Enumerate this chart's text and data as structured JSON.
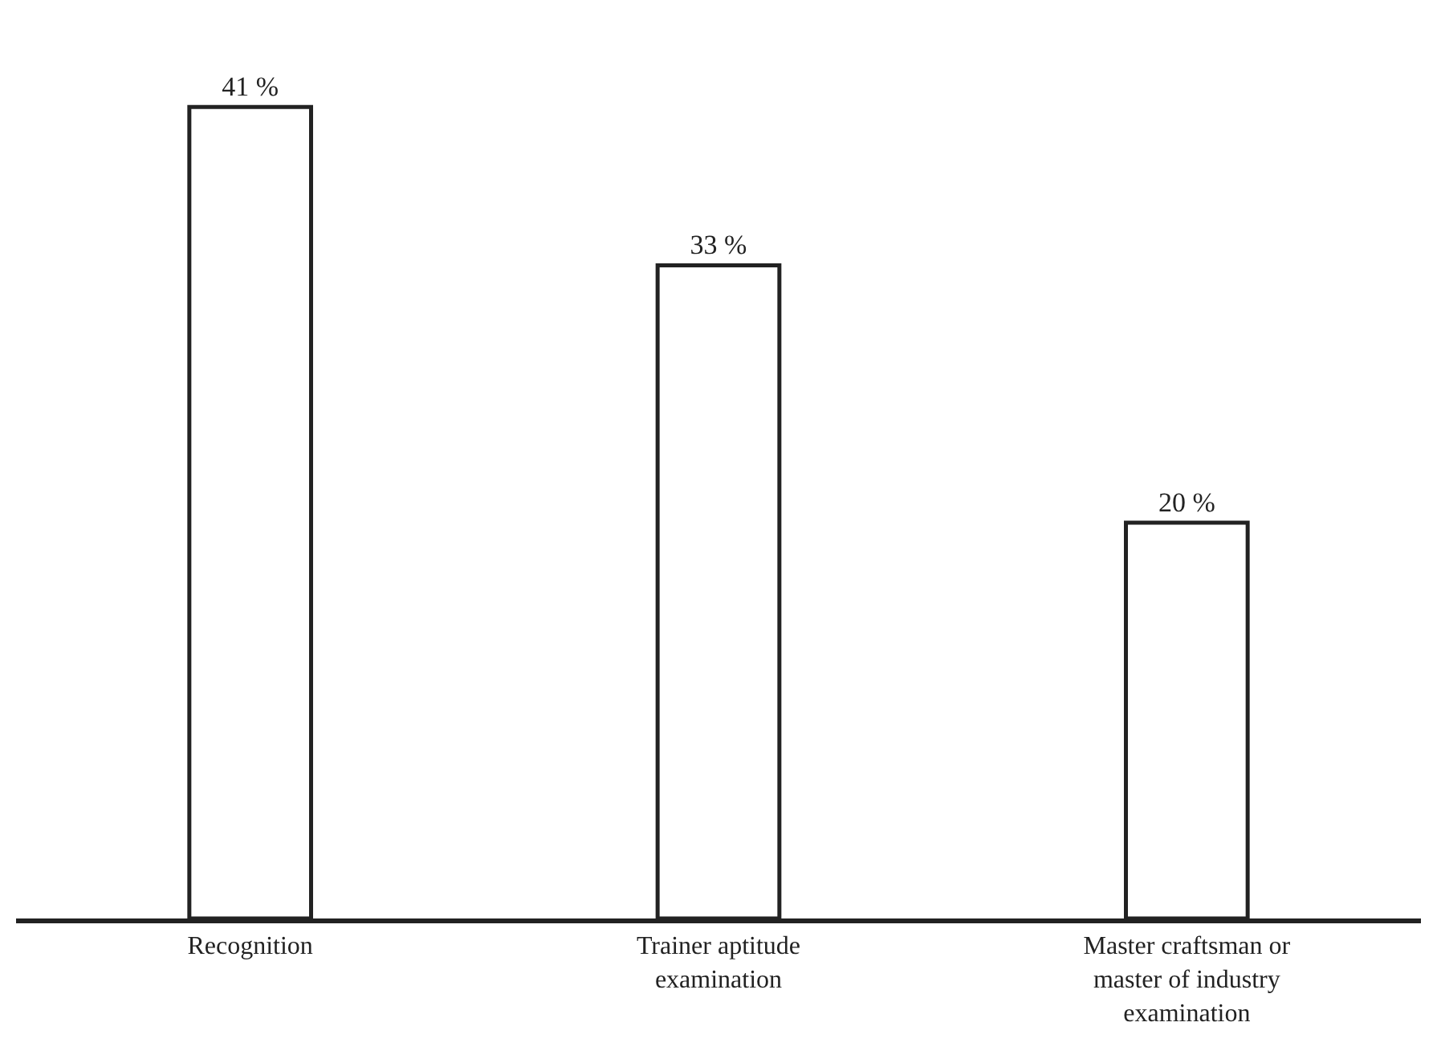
{
  "chart_data": {
    "type": "bar",
    "categories": [
      "Recognition",
      "Trainer aptitude examination",
      "Master craftsman or master of industry examination"
    ],
    "values": [
      41,
      33,
      20
    ],
    "value_labels": [
      "41 %",
      "33 %",
      "20 %"
    ],
    "color": "#ffffff",
    "grid": false,
    "legend": false
  }
}
